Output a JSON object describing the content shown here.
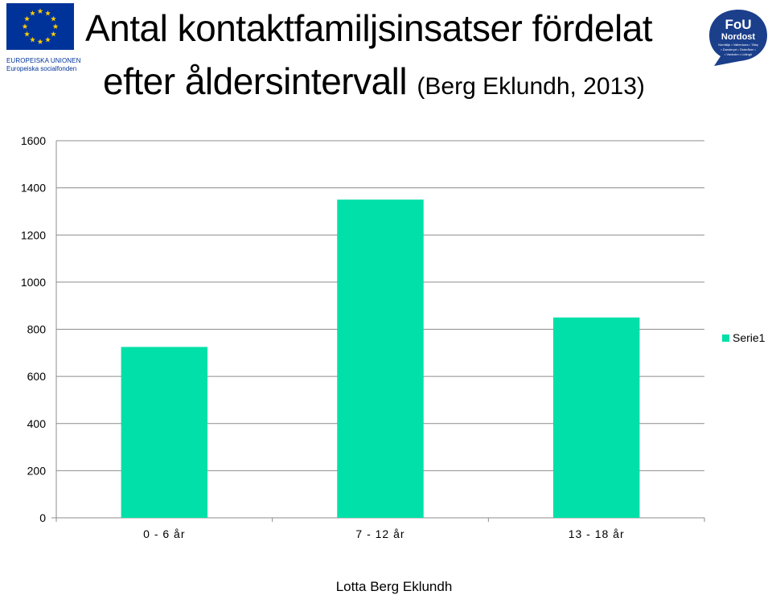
{
  "logos": {
    "eu": {
      "line1": "EUROPEISKA UNIONEN",
      "line2": "Europeiska socialfonden",
      "flag_color": "#003399",
      "star_color": "#FFCC00"
    },
    "fou": {
      "line1": "FoU",
      "line2": "Nordost",
      "small_text_1": "Norrtälje • Vallentuna • Täby",
      "small_text_2": "• Danderyd • Österåker •",
      "small_text_3": "• Vaxholm • Lidingö",
      "color": "#1B3F8B"
    }
  },
  "title": {
    "line1": "Antal kontaktfamiljsinsatser fördelat",
    "line2_main": "efter åldersintervall ",
    "line2_sub": "(Berg Eklundh, 2013)"
  },
  "chart_data": {
    "type": "bar",
    "categories": [
      "0 - 6 år",
      "7 - 12 år",
      "13 - 18 år"
    ],
    "series": [
      {
        "name": "Serie1",
        "values": [
          725,
          1350,
          850
        ],
        "color": "#00E0A8"
      }
    ],
    "ylim": [
      0,
      1600
    ],
    "yticks": [
      0,
      200,
      400,
      600,
      800,
      1000,
      1200,
      1400,
      1600
    ],
    "grid": true,
    "legend_position": "right"
  },
  "footer": {
    "author": "Lotta Berg Eklundh"
  }
}
